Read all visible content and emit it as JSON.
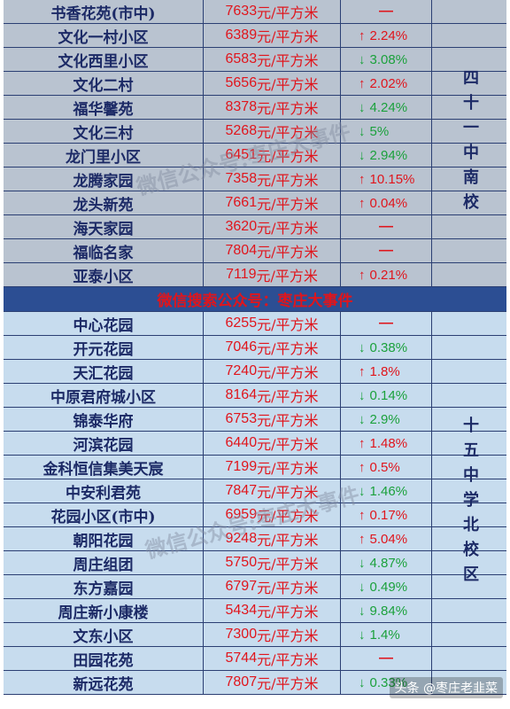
{
  "unit": "元/平方米",
  "section1": {
    "label": "四十一中南校",
    "rows": [
      {
        "name": "书香花苑(市中)",
        "price": "7633",
        "dir": "flat",
        "change": "—"
      },
      {
        "name": "文化一村小区",
        "price": "6389",
        "dir": "up",
        "change": "2.24%"
      },
      {
        "name": "文化西里小区",
        "price": "6583",
        "dir": "down",
        "change": "3.08%"
      },
      {
        "name": "文化二村",
        "price": "5656",
        "dir": "up",
        "change": "2.02%"
      },
      {
        "name": "福华馨苑",
        "price": "8378",
        "dir": "down",
        "change": "4.24%"
      },
      {
        "name": "文化三村",
        "price": "5268",
        "dir": "down",
        "change": "5%"
      },
      {
        "name": "龙门里小区",
        "price": "6451",
        "dir": "down",
        "change": "2.94%"
      },
      {
        "name": "龙腾家园",
        "price": "7358",
        "dir": "up",
        "change": "10.15%"
      },
      {
        "name": "龙头新苑",
        "price": "7661",
        "dir": "up",
        "change": "0.04%"
      },
      {
        "name": "海天家园",
        "price": "3620",
        "dir": "flat",
        "change": "—"
      },
      {
        "name": "福临名家",
        "price": "7804",
        "dir": "flat",
        "change": "—"
      },
      {
        "name": "亚泰小区",
        "price": "7119",
        "dir": "up",
        "change": "0.21%"
      }
    ]
  },
  "banner": "微信搜索公众号：枣庄大事件",
  "section2": {
    "label": "十五中学北校区",
    "rows": [
      {
        "name": "中心花园",
        "price": "6255",
        "dir": "flat",
        "change": "—"
      },
      {
        "name": "开元花园",
        "price": "7046",
        "dir": "down",
        "change": "0.38%"
      },
      {
        "name": "天汇花园",
        "price": "7240",
        "dir": "up",
        "change": "1.8%"
      },
      {
        "name": "中原君府城小区",
        "price": "8164",
        "dir": "down",
        "change": "0.14%"
      },
      {
        "name": "锦泰华府",
        "price": "6753",
        "dir": "down",
        "change": "2.9%"
      },
      {
        "name": "河滨花园",
        "price": "6440",
        "dir": "up",
        "change": "1.48%"
      },
      {
        "name": "金科恒信集美天宸",
        "price": "7199",
        "dir": "up",
        "change": "0.5%"
      },
      {
        "name": "中安利君苑",
        "price": "7847",
        "dir": "down",
        "change": "1.46%"
      },
      {
        "name": "花园小区(市中)",
        "price": "6959",
        "dir": "up",
        "change": "0.17%"
      },
      {
        "name": "朝阳花园",
        "price": "9248",
        "dir": "up",
        "change": "5.04%"
      },
      {
        "name": "周庄组团",
        "price": "5750",
        "dir": "down",
        "change": "4.87%"
      },
      {
        "name": "东方嘉园",
        "price": "6797",
        "dir": "down",
        "change": "0.49%"
      },
      {
        "name": "周庄新小康楼",
        "price": "5434",
        "dir": "down",
        "change": "9.84%"
      },
      {
        "name": "文东小区",
        "price": "7300",
        "dir": "down",
        "change": "1.4%"
      },
      {
        "name": "田园花苑",
        "price": "5744",
        "dir": "flat",
        "change": "—"
      },
      {
        "name": "新远花苑",
        "price": "7807",
        "dir": "down",
        "change": "0.33%"
      }
    ]
  },
  "watermark": "微信公众号:枣庄大事件",
  "footer": "头条 @枣庄老韭菜",
  "arrows": {
    "up": "↑",
    "down": "↓"
  },
  "colors": {
    "up": "#e0151c",
    "down": "#1ba13c",
    "banner_bg": "#2c4e93",
    "section1_bg": "#b9c3d0",
    "section2_bg": "#c7dcee"
  }
}
